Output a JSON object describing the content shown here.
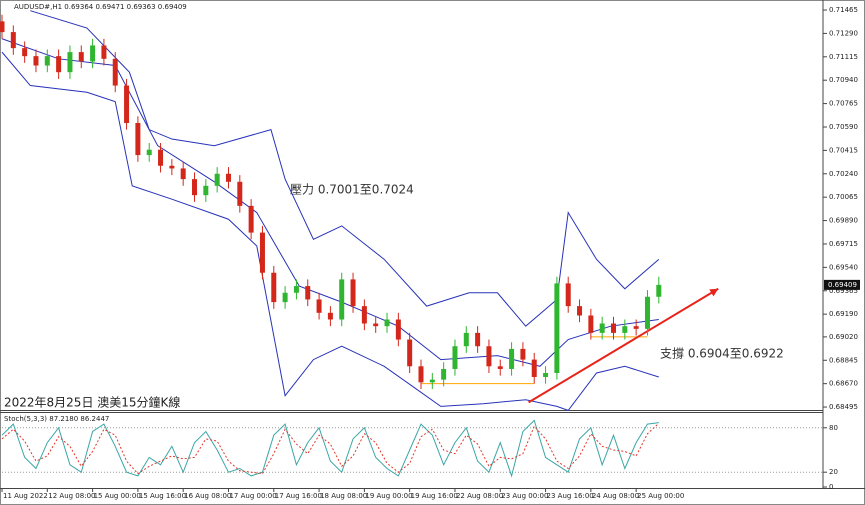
{
  "chart_data": [
    {
      "type": "candlestick",
      "title": "AUDUSD#,H1  0.69364 0.69471 0.69363 0.69409",
      "annotations": [
        "壓力 0.7001至0.7024",
        "支撐 0.6904至0.6922",
        "2022年8月25日 澳美15分鐘K線"
      ],
      "last_price": 0.69409,
      "x": [
        0,
        4,
        8,
        12,
        16,
        20,
        24,
        28,
        32,
        36,
        40,
        44,
        48,
        52,
        56,
        60,
        64,
        68,
        72,
        76,
        80,
        84,
        88,
        92,
        96,
        100,
        104,
        108,
        112,
        116,
        120,
        124,
        128,
        132,
        136,
        140,
        144,
        148,
        152,
        156,
        160,
        164,
        168,
        172,
        176,
        180,
        184,
        188,
        192,
        196,
        200,
        204,
        208,
        212,
        216,
        220,
        224,
        228,
        232
      ],
      "open": [
        0.7138,
        0.713,
        0.7118,
        0.7112,
        0.7105,
        0.7112,
        0.71,
        0.7115,
        0.7108,
        0.712,
        0.711,
        0.709,
        0.7062,
        0.7038,
        0.7042,
        0.703,
        0.7028,
        0.702,
        0.7008,
        0.7015,
        0.7024,
        0.7018,
        0.7,
        0.698,
        0.695,
        0.6928,
        0.6935,
        0.694,
        0.693,
        0.692,
        0.6915,
        0.6945,
        0.6925,
        0.6912,
        0.691,
        0.6915,
        0.69,
        0.688,
        0.6868,
        0.687,
        0.6878,
        0.6895,
        0.6905,
        0.6895,
        0.688,
        0.6878,
        0.6893,
        0.6885,
        0.6872,
        0.6875,
        0.6942,
        0.6925,
        0.6918,
        0.6905,
        0.6912,
        0.6905,
        0.691,
        0.6908,
        0.6932
      ],
      "high": [
        0.7143,
        0.7135,
        0.7123,
        0.7117,
        0.7117,
        0.7117,
        0.712,
        0.712,
        0.7125,
        0.7125,
        0.7115,
        0.7095,
        0.7067,
        0.7047,
        0.7047,
        0.7035,
        0.7033,
        0.7025,
        0.702,
        0.7029,
        0.7029,
        0.7023,
        0.7005,
        0.6985,
        0.6955,
        0.694,
        0.6945,
        0.6945,
        0.6935,
        0.6925,
        0.695,
        0.695,
        0.693,
        0.6917,
        0.692,
        0.692,
        0.6905,
        0.6885,
        0.6875,
        0.6883,
        0.69,
        0.691,
        0.691,
        0.69,
        0.6885,
        0.6898,
        0.6898,
        0.689,
        0.688,
        0.6947,
        0.6947,
        0.693,
        0.6923,
        0.6917,
        0.6917,
        0.6915,
        0.6915,
        0.6937,
        0.6947
      ],
      "low": [
        0.7125,
        0.7113,
        0.7107,
        0.71,
        0.71,
        0.7095,
        0.7095,
        0.7103,
        0.7103,
        0.7105,
        0.7085,
        0.7057,
        0.7033,
        0.7033,
        0.7025,
        0.7023,
        0.7015,
        0.7003,
        0.7003,
        0.701,
        0.7013,
        0.6995,
        0.6975,
        0.6945,
        0.6923,
        0.6923,
        0.693,
        0.6925,
        0.6915,
        0.691,
        0.691,
        0.692,
        0.6907,
        0.6905,
        0.6905,
        0.6895,
        0.6875,
        0.6863,
        0.6863,
        0.6865,
        0.6873,
        0.689,
        0.689,
        0.6875,
        0.6873,
        0.6873,
        0.688,
        0.6867,
        0.6867,
        0.687,
        0.692,
        0.6913,
        0.69,
        0.69,
        0.69,
        0.69,
        0.6903,
        0.6903,
        0.6927
      ],
      "close": [
        0.713,
        0.7118,
        0.7112,
        0.7105,
        0.7112,
        0.71,
        0.7115,
        0.7108,
        0.712,
        0.711,
        0.709,
        0.7062,
        0.7038,
        0.7042,
        0.703,
        0.7028,
        0.702,
        0.7008,
        0.7015,
        0.7024,
        0.7018,
        0.7,
        0.698,
        0.695,
        0.6928,
        0.6935,
        0.694,
        0.693,
        0.692,
        0.6915,
        0.6945,
        0.6925,
        0.6912,
        0.691,
        0.6915,
        0.69,
        0.688,
        0.6868,
        0.687,
        0.6878,
        0.6895,
        0.6905,
        0.6895,
        0.688,
        0.6878,
        0.6893,
        0.6885,
        0.6872,
        0.6875,
        0.6942,
        0.6925,
        0.6918,
        0.6905,
        0.6912,
        0.6905,
        0.691,
        0.6908,
        0.6932,
        0.69409
      ],
      "up_color": "#2fb52f",
      "down_color": "#d4271b",
      "series": [
        {
          "color": "#2732b8",
          "x": [
            10,
            30,
            45,
            52,
            60,
            75,
            95,
            100,
            110,
            120,
            135,
            150,
            165,
            175,
            185,
            196,
            200,
            210,
            220,
            232
          ],
          "values": [
            0.7146,
            0.7133,
            0.71,
            0.7057,
            0.705,
            0.7045,
            0.7057,
            0.702,
            0.6975,
            0.6985,
            0.696,
            0.6925,
            0.6935,
            0.6935,
            0.691,
            0.693,
            0.6995,
            0.696,
            0.6938,
            0.696
          ]
        },
        {
          "color": "#2732b8",
          "x": [
            0,
            20,
            40,
            55,
            75,
            90,
            105,
            120,
            140,
            155,
            175,
            190,
            200,
            215,
            232
          ],
          "values": [
            0.7125,
            0.711,
            0.7105,
            0.7045,
            0.7018,
            0.6995,
            0.694,
            0.6928,
            0.691,
            0.6885,
            0.6888,
            0.688,
            0.69,
            0.691,
            0.6915
          ]
        },
        {
          "color": "#2732b8",
          "x": [
            0,
            10,
            30,
            40,
            46,
            60,
            80,
            90,
            100,
            110,
            120,
            135,
            145,
            155,
            170,
            185,
            196,
            200,
            210,
            220,
            232
          ],
          "values": [
            0.7115,
            0.709,
            0.7085,
            0.7078,
            0.7015,
            0.7005,
            0.699,
            0.697,
            0.6858,
            0.6885,
            0.6895,
            0.688,
            0.6865,
            0.685,
            0.6852,
            0.6855,
            0.685,
            0.6847,
            0.6875,
            0.688,
            0.6872
          ]
        },
        {
          "color": "#ffa500",
          "x": [
            148,
            188
          ],
          "values": [
            0.6867,
            0.6867
          ]
        },
        {
          "color": "#ffa500",
          "x": [
            208,
            228
          ],
          "values": [
            0.6902,
            0.6902
          ]
        },
        {
          "color": "#e8231a",
          "x": [
            186,
            253
          ],
          "values": [
            0.6853,
            0.6938
          ],
          "arrow": true
        }
      ],
      "xlim": [
        0,
        290
      ],
      "xticks": [
        {
          "value": 0,
          "label": "11 Aug 2022"
        },
        {
          "value": 16,
          "label": "12 Aug 08:00"
        },
        {
          "value": 32,
          "label": "15 Aug 00:00"
        },
        {
          "value": 48,
          "label": "15 Aug 16:00"
        },
        {
          "value": 64,
          "label": "16 Aug 08:00"
        },
        {
          "value": 80,
          "label": "17 Aug 00:00"
        },
        {
          "value": 96,
          "label": "17 Aug 16:00"
        },
        {
          "value": 112,
          "label": "18 Aug 08:00"
        },
        {
          "value": 128,
          "label": "19 Aug 00:00"
        },
        {
          "value": 144,
          "label": "19 Aug 16:00"
        },
        {
          "value": 160,
          "label": "22 Aug 08:00"
        },
        {
          "value": 176,
          "label": "23 Aug 00:00"
        },
        {
          "value": 192,
          "label": "23 Aug 16:00"
        },
        {
          "value": 208,
          "label": "24 Aug 08:00"
        },
        {
          "value": 224,
          "label": "25 Aug 00:00"
        }
      ],
      "ylim": [
        0.68473,
        0.71525
      ],
      "yticks": [
        0.71465,
        {
          "value": 0.7129,
          "label": "0.71290"
        },
        0.71115,
        {
          "value": 0.7094,
          "label": "0.70940"
        },
        0.70765,
        {
          "value": 0.7059,
          "label": "0.70590"
        },
        0.70415,
        {
          "value": 0.7024,
          "label": "0.70240"
        },
        0.70065,
        {
          "value": 0.6989,
          "label": "0.69890"
        },
        0.69715,
        {
          "value": 0.6954,
          "label": "0.69540"
        },
        0.69365,
        {
          "value": 0.6919,
          "label": "0.69190"
        },
        {
          "value": 0.6902,
          "label": "0.69020"
        },
        0.68845,
        {
          "value": 0.6867,
          "label": "0.68670"
        },
        0.68495
      ]
    },
    {
      "type": "line",
      "title": "Stoch(5,3,3) 87.2180 86.2447",
      "x": [
        0,
        4,
        8,
        12,
        16,
        20,
        24,
        28,
        32,
        36,
        40,
        44,
        48,
        52,
        56,
        60,
        64,
        68,
        72,
        76,
        80,
        84,
        88,
        92,
        96,
        100,
        104,
        108,
        112,
        116,
        120,
        124,
        128,
        132,
        136,
        140,
        144,
        148,
        152,
        156,
        160,
        164,
        168,
        172,
        176,
        180,
        184,
        188,
        192,
        196,
        200,
        204,
        208,
        212,
        216,
        220,
        224,
        228,
        232
      ],
      "series": [
        {
          "color": "#3aa6a6",
          "values": [
            70,
            85,
            40,
            25,
            60,
            80,
            30,
            20,
            75,
            85,
            55,
            20,
            15,
            40,
            30,
            55,
            20,
            60,
            75,
            50,
            20,
            25,
            15,
            20,
            70,
            85,
            30,
            60,
            80,
            35,
            20,
            65,
            80,
            40,
            25,
            15,
            50,
            85,
            70,
            30,
            60,
            80,
            35,
            20,
            60,
            15,
            75,
            90,
            40,
            30,
            20,
            65,
            80,
            30,
            70,
            25,
            60,
            85,
            87
          ]
        },
        {
          "color": "#e0372b",
          "dashed": true,
          "values": [
            65,
            78,
            62,
            35,
            42,
            68,
            55,
            28,
            48,
            78,
            70,
            35,
            18,
            28,
            35,
            42,
            38,
            40,
            65,
            62,
            35,
            22,
            20,
            18,
            45,
            78,
            58,
            45,
            70,
            58,
            28,
            42,
            72,
            60,
            32,
            20,
            32,
            68,
            78,
            50,
            45,
            70,
            58,
            28,
            40,
            38,
            45,
            82,
            65,
            35,
            25,
            42,
            72,
            55,
            50,
            48,
            42,
            72,
            86
          ]
        }
      ],
      "xlim": [
        0,
        290
      ],
      "ylim": [
        0,
        100
      ],
      "yticks": [
        0,
        20,
        80
      ]
    }
  ]
}
